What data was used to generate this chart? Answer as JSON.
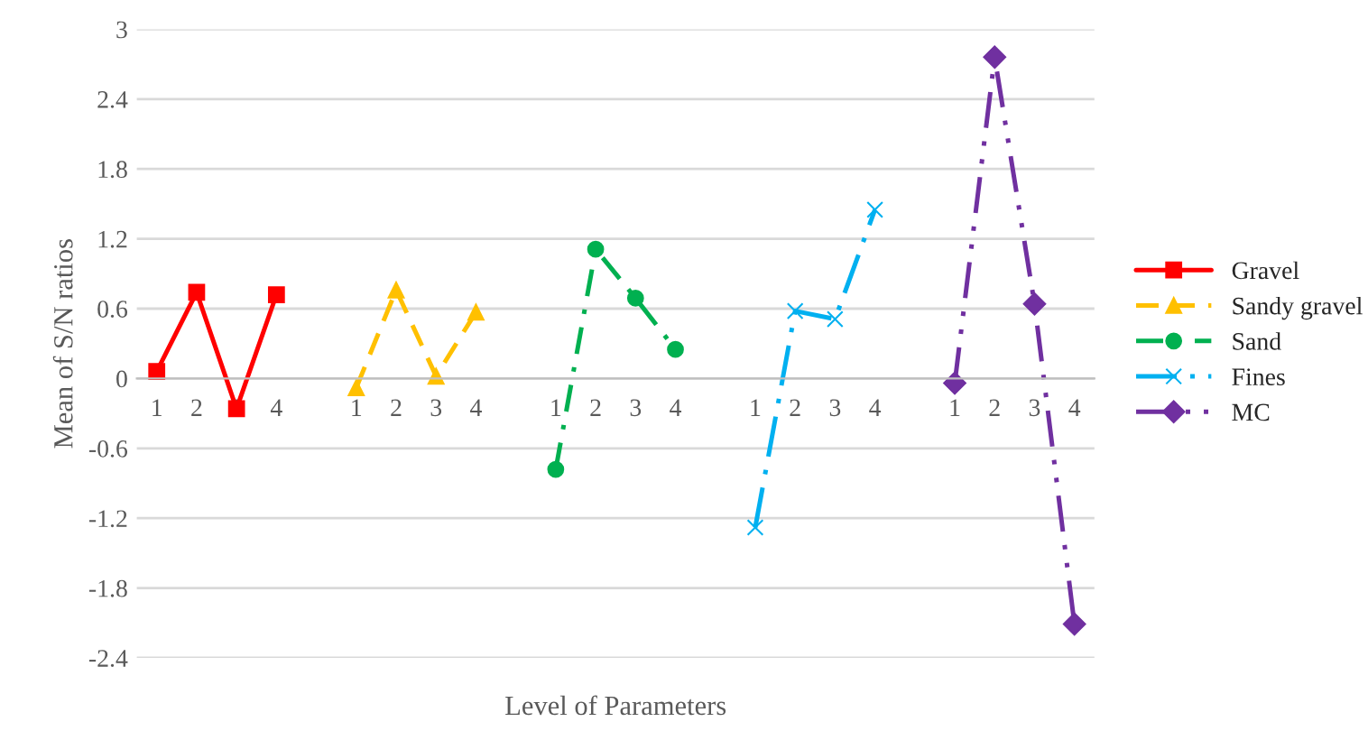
{
  "chart_data": {
    "type": "line",
    "xlabel": "Level of Parameters",
    "ylabel": "Mean of S/N ratios",
    "categories": [
      "1",
      "2",
      "3",
      "4",
      null,
      "1",
      "2",
      "3",
      "4",
      null,
      "1",
      "2",
      "3",
      "4",
      null,
      "1",
      "2",
      "3",
      "4",
      null,
      "1",
      "2",
      "3",
      "4"
    ],
    "series": [
      {
        "name": "Gravel",
        "color": "#ff0000",
        "marker": "square",
        "line_style": "solid",
        "values": [
          0.06,
          0.74,
          -0.26,
          0.72,
          null,
          null,
          null,
          null,
          null,
          null,
          null,
          null,
          null,
          null,
          null,
          null,
          null,
          null,
          null,
          null,
          null,
          null,
          null,
          null
        ]
      },
      {
        "name": "Sandy gravel",
        "color": "#ffc000",
        "marker": "triangle",
        "line_style": "dashed",
        "values": [
          null,
          null,
          null,
          null,
          null,
          -0.08,
          0.76,
          0.02,
          0.57,
          null,
          null,
          null,
          null,
          null,
          null,
          null,
          null,
          null,
          null,
          null,
          null,
          null,
          null,
          null
        ]
      },
      {
        "name": "Sand",
        "color": "#00b050",
        "marker": "circle",
        "line_style": "dashdot",
        "values": [
          null,
          null,
          null,
          null,
          null,
          null,
          null,
          null,
          null,
          null,
          -0.78,
          1.11,
          0.69,
          0.25,
          null,
          null,
          null,
          null,
          null,
          null,
          null,
          null,
          null,
          null
        ]
      },
      {
        "name": "Fines",
        "color": "#00b0f0",
        "marker": "cross",
        "line_style": "longdashdot",
        "values": [
          null,
          null,
          null,
          null,
          null,
          null,
          null,
          null,
          null,
          null,
          null,
          null,
          null,
          null,
          null,
          -1.28,
          0.58,
          0.51,
          1.45,
          null,
          null,
          null,
          null,
          null
        ]
      },
      {
        "name": "MC",
        "color": "#7030a0",
        "marker": "diamond",
        "line_style": "dashdotdot",
        "values": [
          null,
          null,
          null,
          null,
          null,
          null,
          null,
          null,
          null,
          null,
          null,
          null,
          null,
          null,
          null,
          null,
          null,
          null,
          null,
          null,
          -0.04,
          2.76,
          0.64,
          -2.11
        ]
      }
    ],
    "ylim": [
      -2.4,
      3
    ],
    "yticks": [
      -2.4,
      -1.8,
      -1.2,
      -0.6,
      0,
      0.6,
      1.2,
      1.8,
      2.4,
      3
    ],
    "grid": "y",
    "legend": "right"
  }
}
